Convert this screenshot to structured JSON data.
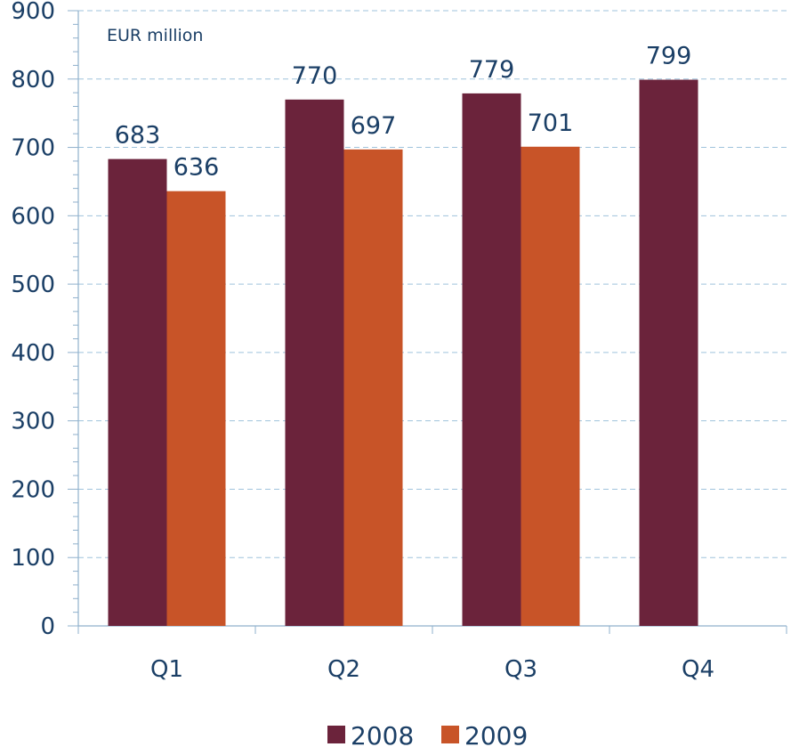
{
  "chart_data": {
    "type": "bar",
    "unit_label": "EUR million",
    "categories": [
      "Q1",
      "Q2",
      "Q3",
      "Q4"
    ],
    "series": [
      {
        "name": "2008",
        "color": "#6b233b",
        "values": [
          683,
          770,
          779,
          799
        ],
        "labels": [
          "683",
          "770",
          "779",
          "799"
        ]
      },
      {
        "name": "2009",
        "color": "#c85428",
        "values": [
          636,
          697,
          701,
          null
        ],
        "labels": [
          "636",
          "697",
          "701",
          ""
        ]
      }
    ],
    "ylim": [
      0,
      900
    ],
    "yticks": [
      0,
      100,
      200,
      300,
      400,
      500,
      600,
      700,
      800,
      900
    ],
    "grid": true,
    "legend_position": "bottom"
  }
}
